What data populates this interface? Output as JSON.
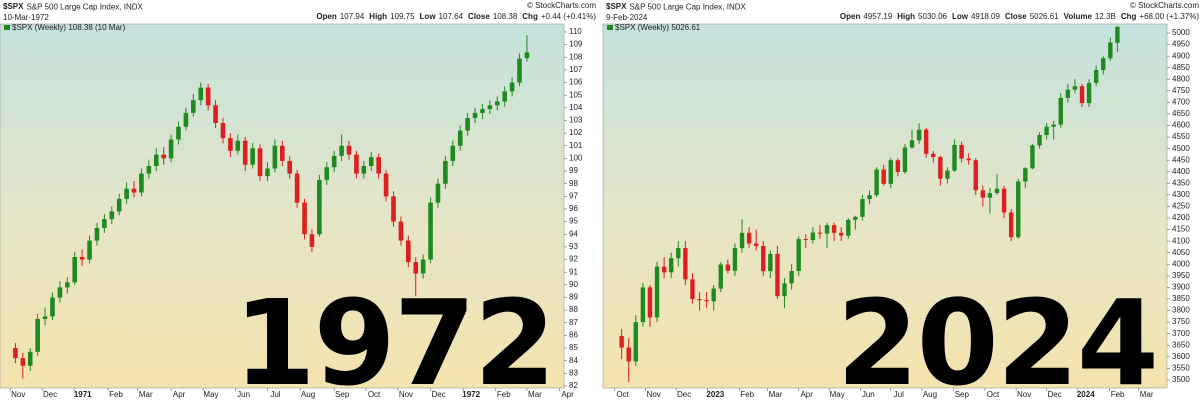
{
  "chart_data": [
    {
      "type": "candlestick",
      "symbol": "$SPX",
      "name": "S&P 500 Large Cap Index, INDX",
      "copyright": "© StockCharts.com",
      "date": "10-Mar-1972",
      "quote": [
        {
          "label": "Open",
          "value": "107.94"
        },
        {
          "label": "High",
          "value": "109.75"
        },
        {
          "label": "Low",
          "value": "107.64"
        },
        {
          "label": "Close",
          "value": "108.38"
        },
        {
          "label": "Chg",
          "value": "+0.44 (+0.41%)"
        }
      ],
      "legend": "$SPX (Weekly) 108.38 (10 Mar)",
      "overlay_text": "1972",
      "up_color": "#1f8a1f",
      "down_color": "#dd1f1f",
      "xlim": [
        -1,
        74
      ],
      "ylim": [
        81.84,
        110.63
      ],
      "yticks": [
        82,
        83,
        84,
        85,
        86,
        87,
        88,
        89,
        90,
        91,
        92,
        93,
        94,
        95,
        96,
        97,
        98,
        99,
        100,
        101,
        102,
        103,
        104,
        105,
        106,
        107,
        108,
        109,
        110
      ],
      "xticks": [
        {
          "value": -0.7,
          "label": "Nov"
        },
        {
          "value": 3.6,
          "label": "Dec"
        },
        {
          "value": 8,
          "label": "1971"
        },
        {
          "value": 12.5,
          "label": "Feb"
        },
        {
          "value": 16.5,
          "label": "Mar"
        },
        {
          "value": 21,
          "label": "Apr"
        },
        {
          "value": 25.3,
          "label": "May"
        },
        {
          "value": 29.7,
          "label": "Jun"
        },
        {
          "value": 34,
          "label": "Jul"
        },
        {
          "value": 38.4,
          "label": "Aug"
        },
        {
          "value": 43,
          "label": "Sep"
        },
        {
          "value": 47.3,
          "label": "Oct"
        },
        {
          "value": 51.6,
          "label": "Nov"
        },
        {
          "value": 56,
          "label": "Dec"
        },
        {
          "value": 60.4,
          "label": "1972"
        },
        {
          "value": 64.8,
          "label": "Feb"
        },
        {
          "value": 69,
          "label": "Mar"
        },
        {
          "value": 73.4,
          "label": "Apr"
        }
      ],
      "ohlc": [
        [
          85.0,
          85.4,
          83.8,
          84.2
        ],
        [
          84.2,
          84.6,
          82.6,
          83.6
        ],
        [
          83.6,
          85.0,
          83.2,
          84.7
        ],
        [
          84.7,
          87.7,
          84.4,
          87.3
        ],
        [
          87.3,
          88.2,
          86.8,
          87.5
        ],
        [
          87.5,
          89.4,
          87.2,
          89.0
        ],
        [
          89.0,
          90.3,
          88.6,
          89.8
        ],
        [
          89.8,
          90.6,
          89.3,
          90.2
        ],
        [
          90.2,
          92.6,
          90.0,
          92.2
        ],
        [
          92.2,
          92.8,
          91.5,
          92.0
        ],
        [
          92.0,
          93.9,
          91.7,
          93.5
        ],
        [
          93.5,
          94.9,
          93.1,
          94.5
        ],
        [
          94.5,
          95.6,
          94.1,
          95.2
        ],
        [
          95.2,
          96.2,
          94.8,
          95.8
        ],
        [
          95.8,
          97.2,
          95.5,
          96.8
        ],
        [
          96.8,
          98.1,
          96.4,
          97.6
        ],
        [
          97.6,
          98.2,
          96.9,
          97.3
        ],
        [
          97.3,
          99.2,
          97.0,
          98.8
        ],
        [
          98.8,
          99.9,
          98.4,
          99.4
        ],
        [
          99.4,
          100.8,
          99.0,
          100.3
        ],
        [
          100.3,
          100.9,
          99.5,
          100.0
        ],
        [
          100.0,
          101.9,
          99.7,
          101.5
        ],
        [
          101.5,
          102.9,
          101.1,
          102.5
        ],
        [
          102.5,
          104.0,
          102.2,
          103.6
        ],
        [
          103.6,
          105.1,
          103.3,
          104.6
        ],
        [
          104.6,
          106.0,
          104.2,
          105.6
        ],
        [
          105.6,
          105.9,
          103.8,
          104.2
        ],
        [
          104.2,
          104.6,
          102.4,
          102.8
        ],
        [
          102.8,
          103.2,
          101.2,
          101.6
        ],
        [
          101.6,
          102.0,
          100.1,
          100.6
        ],
        [
          100.6,
          101.9,
          100.3,
          101.4
        ],
        [
          101.4,
          101.7,
          99.0,
          99.5
        ],
        [
          99.5,
          101.2,
          99.2,
          100.8
        ],
        [
          100.8,
          101.1,
          98.2,
          98.6
        ],
        [
          98.6,
          99.7,
          98.2,
          99.2
        ],
        [
          99.2,
          101.5,
          98.9,
          101.0
        ],
        [
          101.0,
          101.4,
          99.4,
          99.8
        ],
        [
          99.8,
          100.2,
          98.4,
          98.8
        ],
        [
          98.8,
          99.1,
          96.1,
          96.5
        ],
        [
          96.5,
          96.8,
          93.6,
          94.0
        ],
        [
          94.0,
          94.4,
          92.6,
          93.0
        ],
        [
          94.0,
          98.7,
          93.8,
          98.3
        ],
        [
          98.3,
          99.7,
          97.9,
          99.3
        ],
        [
          99.3,
          100.6,
          98.9,
          100.2
        ],
        [
          100.2,
          101.9,
          99.8,
          101.0
        ],
        [
          101.0,
          101.4,
          99.9,
          100.3
        ],
        [
          100.3,
          100.6,
          98.4,
          98.8
        ],
        [
          98.8,
          99.8,
          98.4,
          99.4
        ],
        [
          99.4,
          100.5,
          99.0,
          100.1
        ],
        [
          100.1,
          100.4,
          98.4,
          98.8
        ],
        [
          98.8,
          99.1,
          96.6,
          97.0
        ],
        [
          97.0,
          97.4,
          94.6,
          95.0
        ],
        [
          95.0,
          95.4,
          93.1,
          93.5
        ],
        [
          93.5,
          93.9,
          91.4,
          91.8
        ],
        [
          91.8,
          92.2,
          89.1,
          90.9
        ],
        [
          90.9,
          92.4,
          90.5,
          92.0
        ],
        [
          92.0,
          96.9,
          91.7,
          96.5
        ],
        [
          96.5,
          98.4,
          96.1,
          98.0
        ],
        [
          98.0,
          100.2,
          97.6,
          99.8
        ],
        [
          99.8,
          101.4,
          99.4,
          101.0
        ],
        [
          101.0,
          102.6,
          100.6,
          102.2
        ],
        [
          102.2,
          103.6,
          101.8,
          103.2
        ],
        [
          103.2,
          104.0,
          102.8,
          103.6
        ],
        [
          103.6,
          104.3,
          103.1,
          103.9
        ],
        [
          103.9,
          104.6,
          103.5,
          104.2
        ],
        [
          104.2,
          104.9,
          103.8,
          104.5
        ],
        [
          104.5,
          105.7,
          104.1,
          105.3
        ],
        [
          105.3,
          106.4,
          104.9,
          106.0
        ],
        [
          106.0,
          108.3,
          105.7,
          107.9
        ],
        [
          107.94,
          109.75,
          107.64,
          108.38
        ]
      ]
    },
    {
      "type": "candlestick",
      "symbol": "$SPX",
      "name": "S&P 500 Large Cap Index, INDX",
      "copyright": "© StockCharts.com",
      "date": "9-Feb-2024",
      "quote": [
        {
          "label": "Open",
          "value": "4957.19"
        },
        {
          "label": "High",
          "value": "5030.06"
        },
        {
          "label": "Low",
          "value": "4918.09"
        },
        {
          "label": "Close",
          "value": "5026.61"
        },
        {
          "label": "Volume",
          "value": "12.3B"
        },
        {
          "label": "Chg",
          "value": "+68.00 (+1.37%)"
        }
      ],
      "legend": "$SPX (Weekly) 5026.61",
      "overlay_text": "2024",
      "up_color": "#1f8a1f",
      "down_color": "#dd1f1f",
      "xlim": [
        -1.5,
        77
      ],
      "ylim": [
        3465,
        5039
      ],
      "yticks": [
        3500,
        3550,
        3600,
        3650,
        3700,
        3750,
        3800,
        3850,
        3900,
        3950,
        4000,
        4050,
        4100,
        4150,
        4200,
        4250,
        4300,
        4350,
        4400,
        4450,
        4500,
        4550,
        4600,
        4650,
        4700,
        4750,
        4800,
        4850,
        4900,
        4950,
        5000
      ],
      "xticks": [
        {
          "value": -1,
          "label": "Oct"
        },
        {
          "value": 3.4,
          "label": "Nov"
        },
        {
          "value": 7.7,
          "label": "Dec"
        },
        {
          "value": 12.1,
          "label": "2023"
        },
        {
          "value": 16.6,
          "label": "Feb"
        },
        {
          "value": 20.6,
          "label": "Mar"
        },
        {
          "value": 25,
          "label": "Apr"
        },
        {
          "value": 29.3,
          "label": "May"
        },
        {
          "value": 33.7,
          "label": "Jun"
        },
        {
          "value": 38,
          "label": "Jul"
        },
        {
          "value": 42.4,
          "label": "Aug"
        },
        {
          "value": 46.9,
          "label": "Sep"
        },
        {
          "value": 51.3,
          "label": "Oct"
        },
        {
          "value": 55.7,
          "label": "Nov"
        },
        {
          "value": 60,
          "label": "Dec"
        },
        {
          "value": 64.4,
          "label": "2024"
        },
        {
          "value": 68.9,
          "label": "Feb"
        },
        {
          "value": 73,
          "label": "Mar"
        }
      ],
      "ohlc": [
        [
          3690,
          3720,
          3590,
          3640
        ],
        [
          3640,
          3680,
          3490,
          3580
        ],
        [
          3580,
          3780,
          3560,
          3750
        ],
        [
          3750,
          3920,
          3730,
          3900
        ],
        [
          3900,
          3910,
          3730,
          3770
        ],
        [
          3770,
          4010,
          3750,
          3990
        ],
        [
          3990,
          4030,
          3940,
          3965
        ],
        [
          3965,
          4050,
          3940,
          4026
        ],
        [
          4026,
          4100,
          3990,
          4070
        ],
        [
          4070,
          4100,
          3910,
          3935
        ],
        [
          3935,
          3960,
          3830,
          3850
        ],
        [
          3850,
          3880,
          3800,
          3845
        ],
        [
          3845,
          3880,
          3810,
          3840
        ],
        [
          3840,
          3910,
          3800,
          3895
        ],
        [
          3895,
          4010,
          3880,
          3999
        ],
        [
          3999,
          4020,
          3960,
          3972
        ],
        [
          3972,
          4090,
          3950,
          4070
        ],
        [
          4070,
          4195,
          4050,
          4136
        ],
        [
          4136,
          4160,
          4070,
          4090
        ],
        [
          4090,
          4150,
          4060,
          4079
        ],
        [
          4079,
          4100,
          3950,
          3970
        ],
        [
          3970,
          4060,
          3940,
          4045
        ],
        [
          4045,
          4080,
          3850,
          3862
        ],
        [
          3862,
          3940,
          3810,
          3917
        ],
        [
          3917,
          4000,
          3890,
          3971
        ],
        [
          3971,
          4120,
          3950,
          4109
        ],
        [
          4109,
          4130,
          4070,
          4105
        ],
        [
          4105,
          4160,
          4090,
          4137
        ],
        [
          4137,
          4170,
          4110,
          4133
        ],
        [
          4133,
          4180,
          4070,
          4169
        ],
        [
          4169,
          4180,
          4100,
          4136
        ],
        [
          4136,
          4160,
          4100,
          4124
        ],
        [
          4124,
          4200,
          4110,
          4192
        ],
        [
          4192,
          4210,
          4150,
          4205
        ],
        [
          4205,
          4300,
          4190,
          4282
        ],
        [
          4282,
          4320,
          4260,
          4299
        ],
        [
          4299,
          4420,
          4290,
          4410
        ],
        [
          4410,
          4430,
          4340,
          4348
        ],
        [
          4348,
          4460,
          4330,
          4450
        ],
        [
          4450,
          4460,
          4380,
          4399
        ],
        [
          4399,
          4520,
          4390,
          4505
        ],
        [
          4505,
          4580,
          4500,
          4536
        ],
        [
          4536,
          4610,
          4520,
          4582
        ],
        [
          4582,
          4590,
          4460,
          4478
        ],
        [
          4478,
          4490,
          4440,
          4464
        ],
        [
          4464,
          4470,
          4340,
          4370
        ],
        [
          4370,
          4420,
          4350,
          4405
        ],
        [
          4405,
          4540,
          4400,
          4516
        ],
        [
          4516,
          4530,
          4440,
          4457
        ],
        [
          4457,
          4480,
          4430,
          4450
        ],
        [
          4450,
          4460,
          4300,
          4320
        ],
        [
          4320,
          4340,
          4250,
          4288
        ],
        [
          4288,
          4330,
          4220,
          4308
        ],
        [
          4308,
          4390,
          4300,
          4327
        ],
        [
          4327,
          4340,
          4200,
          4224
        ],
        [
          4224,
          4240,
          4100,
          4117
        ],
        [
          4117,
          4370,
          4110,
          4358
        ],
        [
          4358,
          4420,
          4330,
          4415
        ],
        [
          4415,
          4520,
          4410,
          4514
        ],
        [
          4514,
          4570,
          4500,
          4559
        ],
        [
          4559,
          4610,
          4540,
          4595
        ],
        [
          4595,
          4620,
          4540,
          4604
        ],
        [
          4604,
          4740,
          4590,
          4719
        ],
        [
          4719,
          4780,
          4700,
          4755
        ],
        [
          4755,
          4800,
          4740,
          4770
        ],
        [
          4770,
          4780,
          4680,
          4697
        ],
        [
          4697,
          4800,
          4680,
          4784
        ],
        [
          4784,
          4860,
          4770,
          4840
        ],
        [
          4840,
          4900,
          4820,
          4891
        ],
        [
          4891,
          4980,
          4880,
          4959
        ],
        [
          4957.19,
          5030.06,
          4918.09,
          5026.61
        ]
      ]
    }
  ]
}
